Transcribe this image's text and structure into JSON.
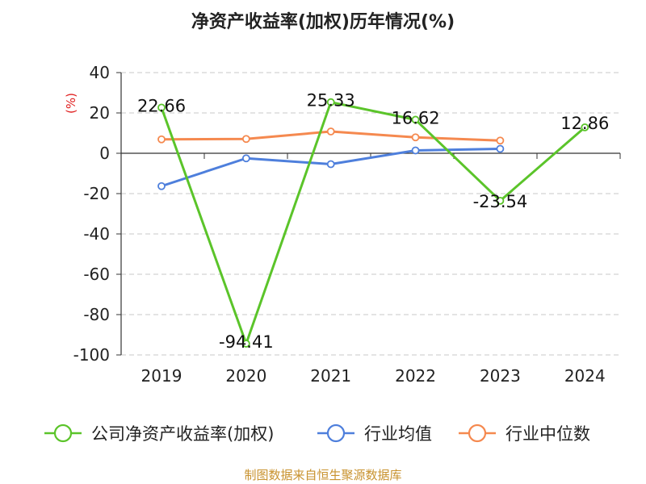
{
  "chart_data": {
    "type": "line",
    "title": "净资产收益率(加权)历年情况(%)",
    "ylabel": "(%)",
    "categories": [
      "2019",
      "2020",
      "2021",
      "2022",
      "2023",
      "2024"
    ],
    "ylim": [
      -100,
      40
    ],
    "yticks": [
      40,
      20,
      0,
      -20,
      -40,
      -60,
      -80,
      -100
    ],
    "grid": true,
    "legend_position": "bottom",
    "series": [
      {
        "name": "公司净资产收益率(加权)",
        "color": "#5bc42a",
        "values": [
          22.66,
          -94.41,
          25.33,
          16.62,
          -23.54,
          12.86
        ],
        "labels": [
          "22.66",
          "-94.41",
          "25.33",
          "16.62",
          "-23.54",
          "12.86"
        ]
      },
      {
        "name": "行业均值",
        "color": "#4e7fdc",
        "values": [
          -16.3,
          -2.5,
          -5.4,
          1.4,
          2.2,
          null
        ]
      },
      {
        "name": "行业中位数",
        "color": "#f5894f",
        "values": [
          6.9,
          7.1,
          10.8,
          7.9,
          6.3,
          null
        ]
      }
    ]
  },
  "source": "制图数据来自恒生聚源数据库"
}
